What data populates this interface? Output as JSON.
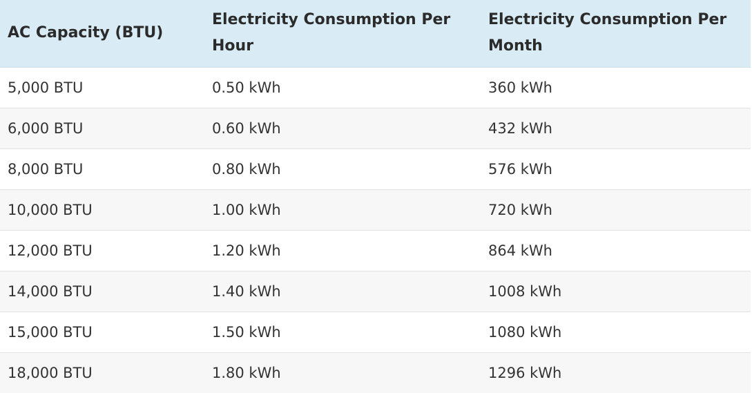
{
  "table": {
    "headers": [
      "AC Capacity (BTU)",
      "Electricity Consumption Per Hour",
      "Electricity Consumption Per Month"
    ],
    "rows": [
      [
        "5,000 BTU",
        "0.50 kWh",
        "360 kWh"
      ],
      [
        "6,000 BTU",
        "0.60 kWh",
        "432 kWh"
      ],
      [
        "8,000 BTU",
        "0.80 kWh",
        "576 kWh"
      ],
      [
        "10,000 BTU",
        "1.00 kWh",
        "720 kWh"
      ],
      [
        "12,000 BTU",
        "1.20 kWh",
        "864 kWh"
      ],
      [
        "14,000 BTU",
        "1.40 kWh",
        "1008 kWh"
      ],
      [
        "15,000 BTU",
        "1.50 kWh",
        "1080 kWh"
      ],
      [
        "18,000 BTU",
        "1.80 kWh",
        "1296 kWh"
      ]
    ]
  },
  "colors": {
    "header_background": "#d9ecf5",
    "row_alt_background": "#f7f7f7",
    "row_background": "#ffffff",
    "text": "#333333"
  }
}
